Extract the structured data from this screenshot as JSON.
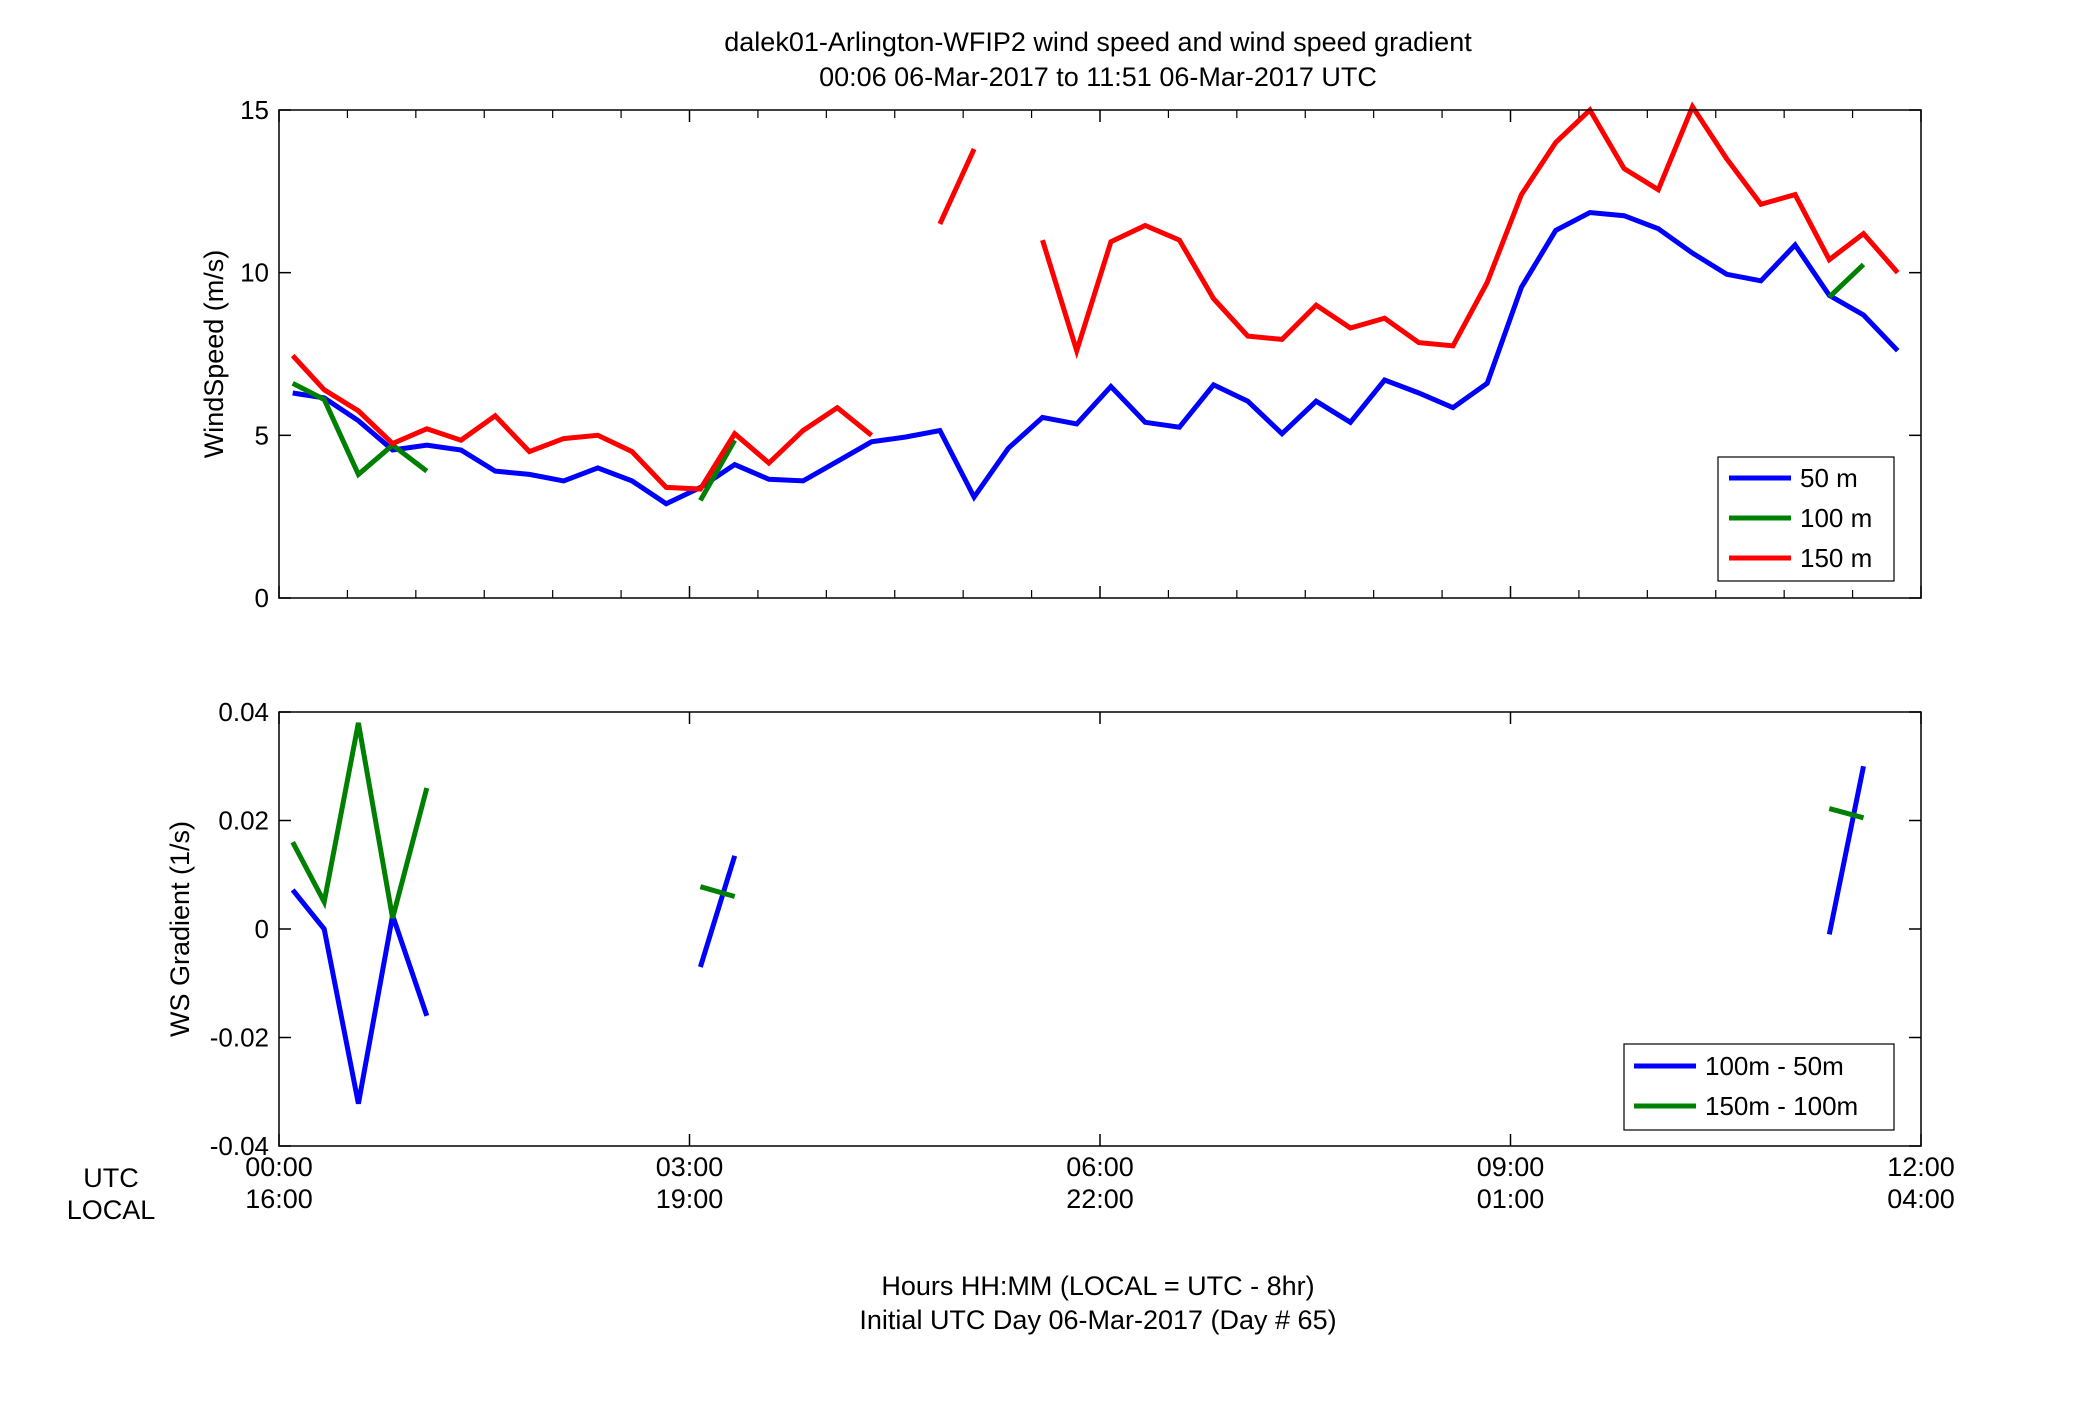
{
  "figure": {
    "title_line1": "dalek01-Arlington-WFIP2  wind speed and wind speed gradient",
    "title_line2": "00:06 06-Mar-2017 to 11:51 06-Mar-2017  UTC",
    "xlabel_line1": "Hours HH:MM  (LOCAL = UTC - 8hr)",
    "xlabel_line2": "Initial UTC Day 06-Mar-2017 (Day # 65)",
    "row_label_utc": "UTC",
    "row_label_local": "LOCAL",
    "x_ticks_utc": [
      "00:00",
      "03:00",
      "06:00",
      "09:00",
      "12:00"
    ],
    "x_ticks_local": [
      "16:00",
      "19:00",
      "22:00",
      "01:00",
      "04:00"
    ]
  },
  "chart_data": [
    {
      "type": "line",
      "ylabel": "WindSpeed (m/s)",
      "xlim": [
        0,
        12
      ],
      "ylim": [
        0,
        15
      ],
      "yticks": [
        0,
        5,
        10,
        15
      ],
      "x_ticks": [
        0,
        3,
        6,
        9,
        12
      ],
      "x_unit": "hours UTC",
      "grid": false,
      "legend_position": "bottom-right",
      "series": [
        {
          "name": "50 m",
          "color": "#0000ff",
          "points": [
            [
              0.1,
              6.3
            ],
            [
              0.33,
              6.15
            ],
            [
              0.58,
              5.45
            ],
            [
              0.83,
              4.55
            ],
            [
              1.08,
              4.7
            ],
            [
              1.33,
              4.55
            ],
            [
              1.58,
              3.9
            ],
            [
              1.83,
              3.8
            ],
            [
              2.08,
              3.6
            ],
            [
              2.33,
              4.0
            ],
            [
              2.58,
              3.6
            ],
            [
              2.83,
              2.9
            ],
            [
              3.08,
              3.4
            ],
            [
              3.33,
              4.1
            ],
            [
              3.58,
              3.65
            ],
            [
              3.83,
              3.6
            ],
            [
              4.08,
              4.2
            ],
            [
              4.33,
              4.8
            ],
            [
              4.58,
              4.95
            ],
            [
              4.83,
              5.15
            ],
            [
              5.08,
              3.1
            ],
            [
              5.33,
              4.6
            ],
            [
              5.58,
              5.55
            ],
            [
              5.83,
              5.35
            ],
            [
              6.08,
              6.5
            ],
            [
              6.33,
              5.4
            ],
            [
              6.58,
              5.25
            ],
            [
              6.83,
              6.55
            ],
            [
              7.08,
              6.05
            ],
            [
              7.33,
              5.05
            ],
            [
              7.58,
              6.05
            ],
            [
              7.83,
              5.4
            ],
            [
              8.08,
              6.7
            ],
            [
              8.33,
              6.3
            ],
            [
              8.58,
              5.85
            ],
            [
              8.83,
              6.6
            ],
            [
              9.08,
              9.55
            ],
            [
              9.33,
              11.3
            ],
            [
              9.58,
              11.85
            ],
            [
              9.83,
              11.75
            ],
            [
              10.08,
              11.35
            ],
            [
              10.33,
              10.6
            ],
            [
              10.58,
              9.95
            ],
            [
              10.83,
              9.75
            ],
            [
              11.08,
              10.85
            ],
            [
              11.33,
              9.3
            ],
            [
              11.58,
              8.7
            ],
            [
              11.83,
              7.6
            ]
          ]
        },
        {
          "name": "100 m",
          "color": "#008000",
          "segments": [
            [
              [
                0.1,
                6.6
              ],
              [
                0.33,
                6.1
              ],
              [
                0.58,
                3.8
              ],
              [
                0.83,
                4.7
              ],
              [
                1.08,
                3.9
              ]
            ],
            [
              [
                3.08,
                3.0
              ],
              [
                3.33,
                4.85
              ]
            ],
            [
              [
                11.33,
                9.25
              ],
              [
                11.58,
                10.25
              ]
            ]
          ]
        },
        {
          "name": "150 m",
          "color": "#ff0000",
          "segments": [
            [
              [
                0.1,
                7.45
              ],
              [
                0.33,
                6.4
              ],
              [
                0.58,
                5.75
              ],
              [
                0.83,
                4.75
              ],
              [
                1.08,
                5.2
              ],
              [
                1.33,
                4.85
              ],
              [
                1.58,
                5.6
              ],
              [
                1.83,
                4.5
              ],
              [
                2.08,
                4.9
              ],
              [
                2.33,
                5.0
              ],
              [
                2.58,
                4.5
              ],
              [
                2.83,
                3.4
              ],
              [
                3.08,
                3.35
              ],
              [
                3.33,
                5.05
              ],
              [
                3.58,
                4.15
              ],
              [
                3.83,
                5.15
              ],
              [
                4.08,
                5.85
              ],
              [
                4.33,
                5.0
              ]
            ],
            [
              [
                4.83,
                11.5
              ],
              [
                5.08,
                13.8
              ]
            ],
            [
              [
                5.58,
                11.0
              ],
              [
                5.83,
                7.6
              ],
              [
                6.08,
                10.95
              ],
              [
                6.33,
                11.45
              ],
              [
                6.58,
                11.0
              ],
              [
                6.83,
                9.2
              ],
              [
                7.08,
                8.05
              ],
              [
                7.33,
                7.95
              ],
              [
                7.58,
                9.0
              ],
              [
                7.83,
                8.3
              ],
              [
                8.08,
                8.6
              ],
              [
                8.33,
                7.85
              ],
              [
                8.58,
                7.75
              ],
              [
                8.83,
                9.7
              ],
              [
                9.08,
                12.4
              ],
              [
                9.33,
                14.0
              ],
              [
                9.58,
                15.0
              ],
              [
                9.83,
                13.2
              ],
              [
                10.08,
                12.55
              ],
              [
                10.33,
                15.1
              ],
              [
                10.58,
                13.5
              ],
              [
                10.83,
                12.1
              ],
              [
                11.08,
                12.4
              ],
              [
                11.33,
                10.4
              ],
              [
                11.58,
                11.2
              ],
              [
                11.83,
                10.0
              ]
            ]
          ]
        }
      ]
    },
    {
      "type": "line",
      "ylabel": "WS Gradient (1/s)",
      "xlim": [
        0,
        12
      ],
      "ylim": [
        -0.04,
        0.04
      ],
      "yticks": [
        -0.04,
        -0.02,
        0,
        0.02,
        0.04
      ],
      "x_ticks": [
        0,
        3,
        6,
        9,
        12
      ],
      "x_unit": "hours UTC",
      "grid": false,
      "legend_position": "bottom-right",
      "series": [
        {
          "name": "100m - 50m",
          "color": "#0000ff",
          "segments": [
            [
              [
                0.1,
                0.0072
              ],
              [
                0.33,
                0.0
              ],
              [
                0.58,
                -0.0322
              ],
              [
                0.83,
                0.0025
              ],
              [
                1.08,
                -0.016
              ]
            ],
            [
              [
                3.08,
                -0.007
              ],
              [
                3.33,
                0.0135
              ]
            ],
            [
              [
                11.33,
                -0.001
              ],
              [
                11.58,
                0.03
              ]
            ]
          ]
        },
        {
          "name": "150m - 100m",
          "color": "#008000",
          "segments": [
            [
              [
                0.1,
                0.016
              ],
              [
                0.33,
                0.005
              ],
              [
                0.58,
                0.038
              ],
              [
                0.83,
                0.002
              ],
              [
                1.08,
                0.026
              ]
            ],
            [
              [
                3.08,
                0.0078
              ],
              [
                3.33,
                0.006
              ]
            ],
            [
              [
                11.33,
                0.0222
              ],
              [
                11.58,
                0.0205
              ]
            ]
          ]
        }
      ]
    }
  ]
}
